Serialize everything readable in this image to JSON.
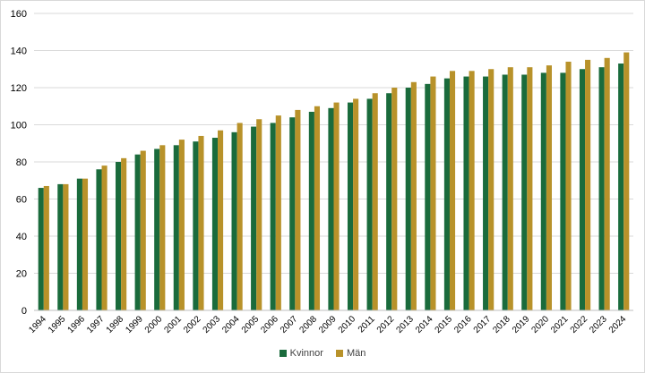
{
  "chart_data": {
    "type": "bar",
    "categories": [
      "1994",
      "1995",
      "1996",
      "1997",
      "1998",
      "1999",
      "2000",
      "2001",
      "2002",
      "2003",
      "2004",
      "2005",
      "2006",
      "2007",
      "2008",
      "2009",
      "2010",
      "2011",
      "2012",
      "2013",
      "2014",
      "2015",
      "2016",
      "2017",
      "2018",
      "2019",
      "2020",
      "2021",
      "2022",
      "2023",
      "2024"
    ],
    "series": [
      {
        "name": "Kvinnor",
        "color": "#1a6b3c",
        "values": [
          66,
          68,
          71,
          76,
          80,
          84,
          87,
          89,
          91,
          93,
          96,
          99,
          101,
          104,
          107,
          109,
          112,
          114,
          117,
          120,
          122,
          125,
          126,
          126,
          127,
          127,
          128,
          128,
          130,
          131,
          133
        ]
      },
      {
        "name": "Män",
        "color": "#b8922a",
        "values": [
          67,
          68,
          71,
          78,
          82,
          86,
          89,
          92,
          94,
          97,
          101,
          103,
          105,
          108,
          110,
          112,
          114,
          117,
          120,
          123,
          126,
          129,
          129,
          130,
          131,
          131,
          132,
          134,
          135,
          136,
          139
        ]
      }
    ],
    "ylim": [
      0,
      160
    ],
    "yticks": [
      0,
      20,
      40,
      60,
      80,
      100,
      120,
      140,
      160
    ],
    "grid": true,
    "legend": "bottom-center"
  }
}
